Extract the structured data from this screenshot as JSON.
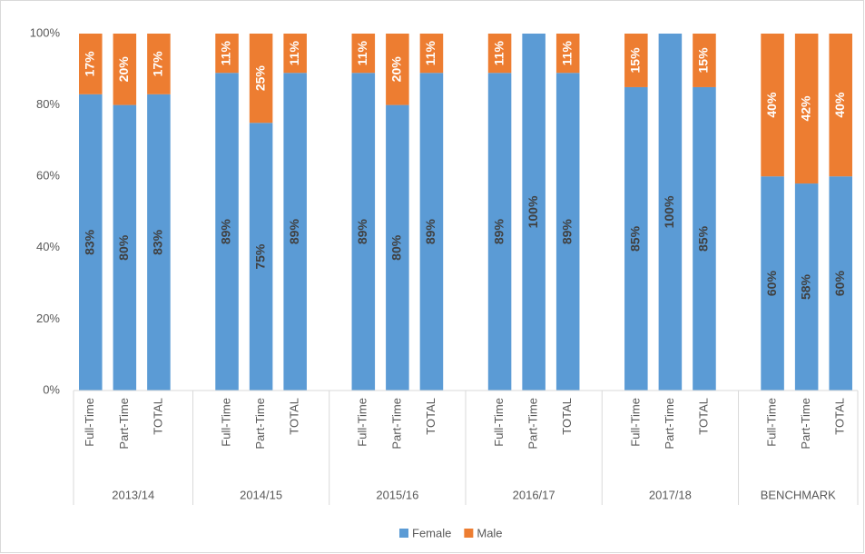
{
  "chart_data": {
    "type": "stacked-bar",
    "groups": [
      "2013/14",
      "2014/15",
      "2015/16",
      "2016/17",
      "2017/18",
      "BENCHMARK"
    ],
    "categories": [
      "Full-Time",
      "Part-Time",
      "TOTAL",
      "Full-Time",
      "Part-Time",
      "TOTAL",
      "Full-Time",
      "Part-Time",
      "TOTAL",
      "Full-Time",
      "Part-Time",
      "TOTAL",
      "Full-Time",
      "Part-Time",
      "TOTAL",
      "Full-Time",
      "Part-Time",
      "TOTAL"
    ],
    "series": [
      {
        "name": "Female",
        "color": "#5b9bd5",
        "values": [
          83,
          80,
          83,
          89,
          75,
          89,
          89,
          80,
          89,
          89,
          100,
          89,
          85,
          100,
          85,
          60,
          58,
          60
        ],
        "value_labels": [
          "83%",
          "80%",
          "83%",
          "89%",
          "75%",
          "89%",
          "89%",
          "80%",
          "89%",
          "89%",
          "100%",
          "89%",
          "85%",
          "100%",
          "85%",
          "60%",
          "58%",
          "60%"
        ]
      },
      {
        "name": "Male",
        "color": "#ed7d31",
        "values": [
          17,
          20,
          17,
          11,
          25,
          11,
          11,
          20,
          11,
          11,
          0,
          11,
          15,
          0,
          15,
          40,
          42,
          40
        ],
        "value_labels": [
          "17%",
          "20%",
          "17%",
          "11%",
          "25%",
          "11%",
          "11%",
          "20%",
          "11%",
          "11%",
          null,
          "11%",
          "15%",
          null,
          "15%",
          "40%",
          "42%",
          "40%"
        ]
      }
    ],
    "ylim": [
      0,
      100
    ],
    "yticks": [
      {
        "value": 0,
        "label": "0%"
      },
      {
        "value": 20,
        "label": "20%"
      },
      {
        "value": 40,
        "label": "40%"
      },
      {
        "value": 60,
        "label": "60%"
      },
      {
        "value": 80,
        "label": "80%"
      },
      {
        "value": 100,
        "label": "100%"
      }
    ],
    "legend": "bottom"
  }
}
